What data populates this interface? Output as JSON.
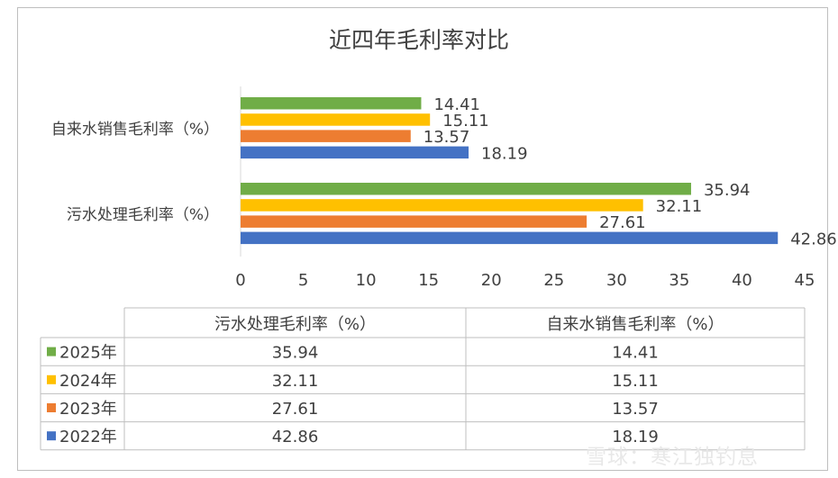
{
  "chart_data": {
    "type": "bar",
    "orientation": "horizontal",
    "title": "近四年毛利率对比",
    "categories": [
      "自来水销售毛利率（%）",
      "污水处理毛利率（%）"
    ],
    "series": [
      {
        "name": "2025年",
        "color": "#70ad47",
        "values": [
          14.41,
          35.94
        ]
      },
      {
        "name": "2024年",
        "color": "#ffc000",
        "values": [
          15.11,
          32.11
        ]
      },
      {
        "name": "2023年",
        "color": "#ed7d31",
        "values": [
          13.57,
          27.61
        ]
      },
      {
        "name": "2022年",
        "color": "#4472c4",
        "values": [
          18.19,
          42.86
        ]
      }
    ],
    "x_ticks": [
      "0",
      "5",
      "10",
      "15",
      "20",
      "25",
      "30",
      "35",
      "40",
      "45"
    ],
    "xlim": [
      0,
      45
    ],
    "grid": false,
    "data_table": {
      "columns": [
        "污水处理毛利率（%）",
        "自来水销售毛利率（%）"
      ],
      "rows": [
        {
          "label": "2025年",
          "values": [
            "35.94",
            "14.41"
          ]
        },
        {
          "label": "2024年",
          "values": [
            "32.11",
            "15.11"
          ]
        },
        {
          "label": "2023年",
          "values": [
            "27.61",
            "13.57"
          ]
        },
        {
          "label": "2022年",
          "values": [
            "42.86",
            "18.19"
          ]
        }
      ]
    }
  },
  "watermark": "雪球：寒江独钓息"
}
